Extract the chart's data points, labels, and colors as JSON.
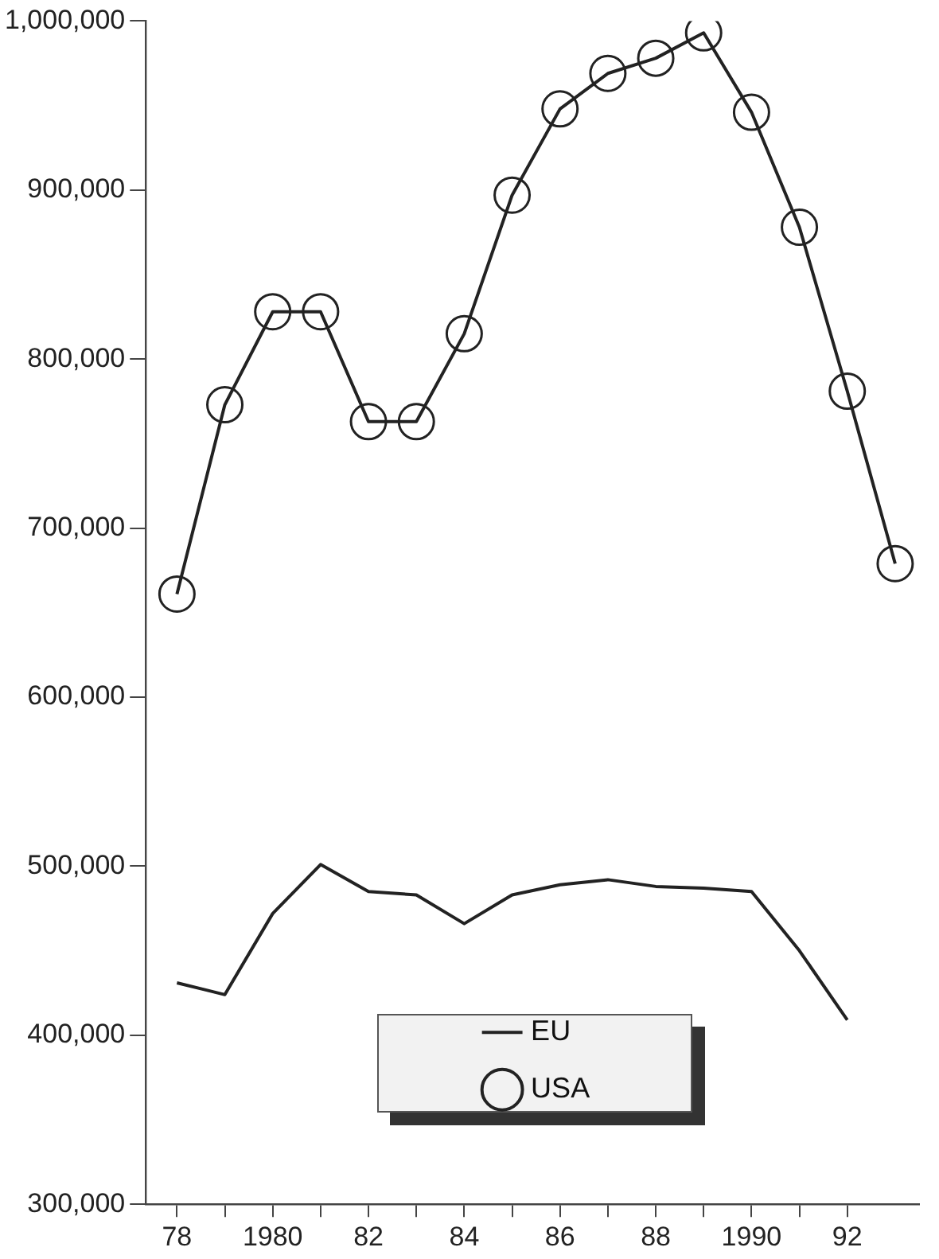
{
  "chart_data": {
    "type": "line",
    "x": [
      1978,
      1979,
      1980,
      1981,
      1982,
      1983,
      1984,
      1985,
      1986,
      1987,
      1988,
      1989,
      1990,
      1991,
      1992,
      1993
    ],
    "series": [
      {
        "name": "EU",
        "color": "#222222",
        "marker": "none",
        "values": [
          431000,
          424000,
          472000,
          501000,
          485000,
          483000,
          466000,
          483000,
          489000,
          492000,
          488000,
          487000,
          485000,
          450000,
          409000,
          null
        ]
      },
      {
        "name": "USA",
        "color": "#222222",
        "marker": "circle",
        "values": [
          661000,
          773000,
          828000,
          828000,
          763000,
          763000,
          815000,
          897000,
          948000,
          969000,
          978000,
          993000,
          946000,
          878000,
          781000,
          679000
        ]
      }
    ],
    "xlim": [
      1977.35,
      1993.5
    ],
    "xticks": [
      {
        "value": 1978,
        "label": "78"
      },
      {
        "value": 1979,
        "label": null
      },
      1980,
      {
        "value": 1981,
        "label": null
      },
      {
        "value": 1982,
        "label": "82"
      },
      {
        "value": 1983,
        "label": null
      },
      {
        "value": 1984,
        "label": "84"
      },
      {
        "value": 1985,
        "label": null
      },
      {
        "value": 1986,
        "label": "86"
      },
      {
        "value": 1987,
        "label": null
      },
      {
        "value": 1988,
        "label": "88"
      },
      {
        "value": 1989,
        "label": null
      },
      1990,
      {
        "value": 1991,
        "label": null
      },
      {
        "value": 1992,
        "label": "92"
      }
    ],
    "ylim": [
      300000,
      1000000
    ],
    "yticks": [
      {
        "value": 300000,
        "label": "300,000"
      },
      {
        "value": 400000,
        "label": "400,000"
      },
      {
        "value": 500000,
        "label": "500,000"
      },
      {
        "value": 600000,
        "label": "600,000"
      },
      {
        "value": 700000,
        "label": "700,000"
      },
      {
        "value": 800000,
        "label": "800,000"
      },
      {
        "value": 900000,
        "label": "900,000"
      },
      {
        "value": 1000000,
        "label": "1,000,000"
      }
    ],
    "grid": false,
    "legend": "bottom",
    "line_style": "solid"
  }
}
